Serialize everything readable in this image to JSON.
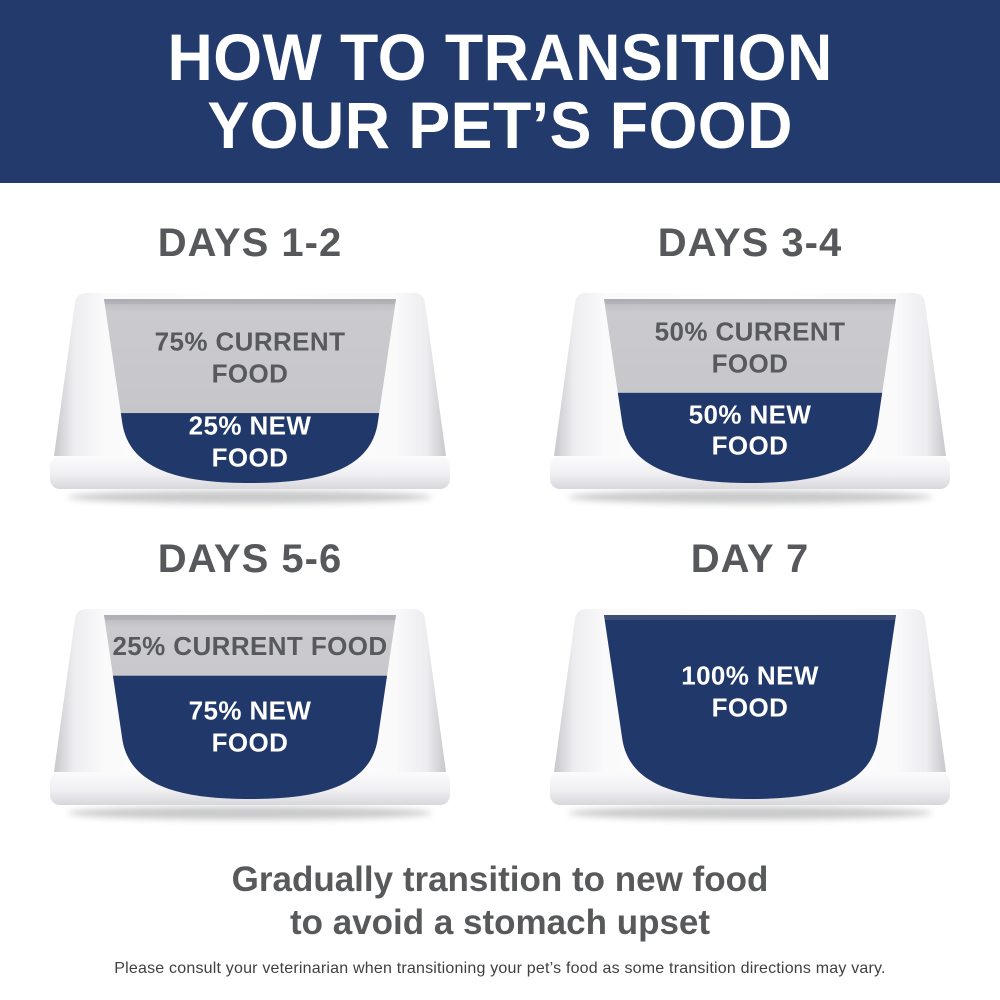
{
  "banner": {
    "title_lines": [
      "HOW TO TRANSITION",
      "YOUR PET’S FOOD"
    ]
  },
  "bowls": [
    {
      "heading": "DAYS 1-2",
      "current_label_lines": [
        "75% CURRENT",
        "FOOD"
      ],
      "new_label_lines": [
        "25% NEW",
        "FOOD"
      ],
      "percent_current": 75,
      "percent_new": 25
    },
    {
      "heading": "DAYS 3-4",
      "current_label_lines": [
        "50% CURRENT",
        "FOOD"
      ],
      "new_label_lines": [
        "50% NEW",
        "FOOD"
      ],
      "percent_current": 50,
      "percent_new": 50
    },
    {
      "heading": "DAYS 5-6",
      "current_label_lines": [
        "25% CURRENT FOOD"
      ],
      "new_label_lines": [
        "75% NEW",
        "FOOD"
      ],
      "percent_current": 25,
      "percent_new": 75
    },
    {
      "heading": "DAY 7",
      "current_label_lines": [],
      "new_label_lines": [
        "100% NEW",
        "FOOD"
      ],
      "percent_current": 0,
      "percent_new": 100
    }
  ],
  "footer": {
    "tagline_lines": [
      "Gradually transition to new food",
      "to avoid a stomach upset"
    ],
    "disclaimer": "Please consult your veterinarian when transitioning your pet’s food as some transition directions may vary."
  },
  "colors": {
    "banner_navy": "#233A6C",
    "new_food_navy": "#21386A",
    "current_food_gray": "#C5C5C9",
    "heading_gray": "#57585B",
    "in_bowl_text_gray": "#58595B",
    "new_food_text_white": "#FFFFFF",
    "tagline_gray": "#58595B",
    "disclaimer_gray": "#404040"
  }
}
